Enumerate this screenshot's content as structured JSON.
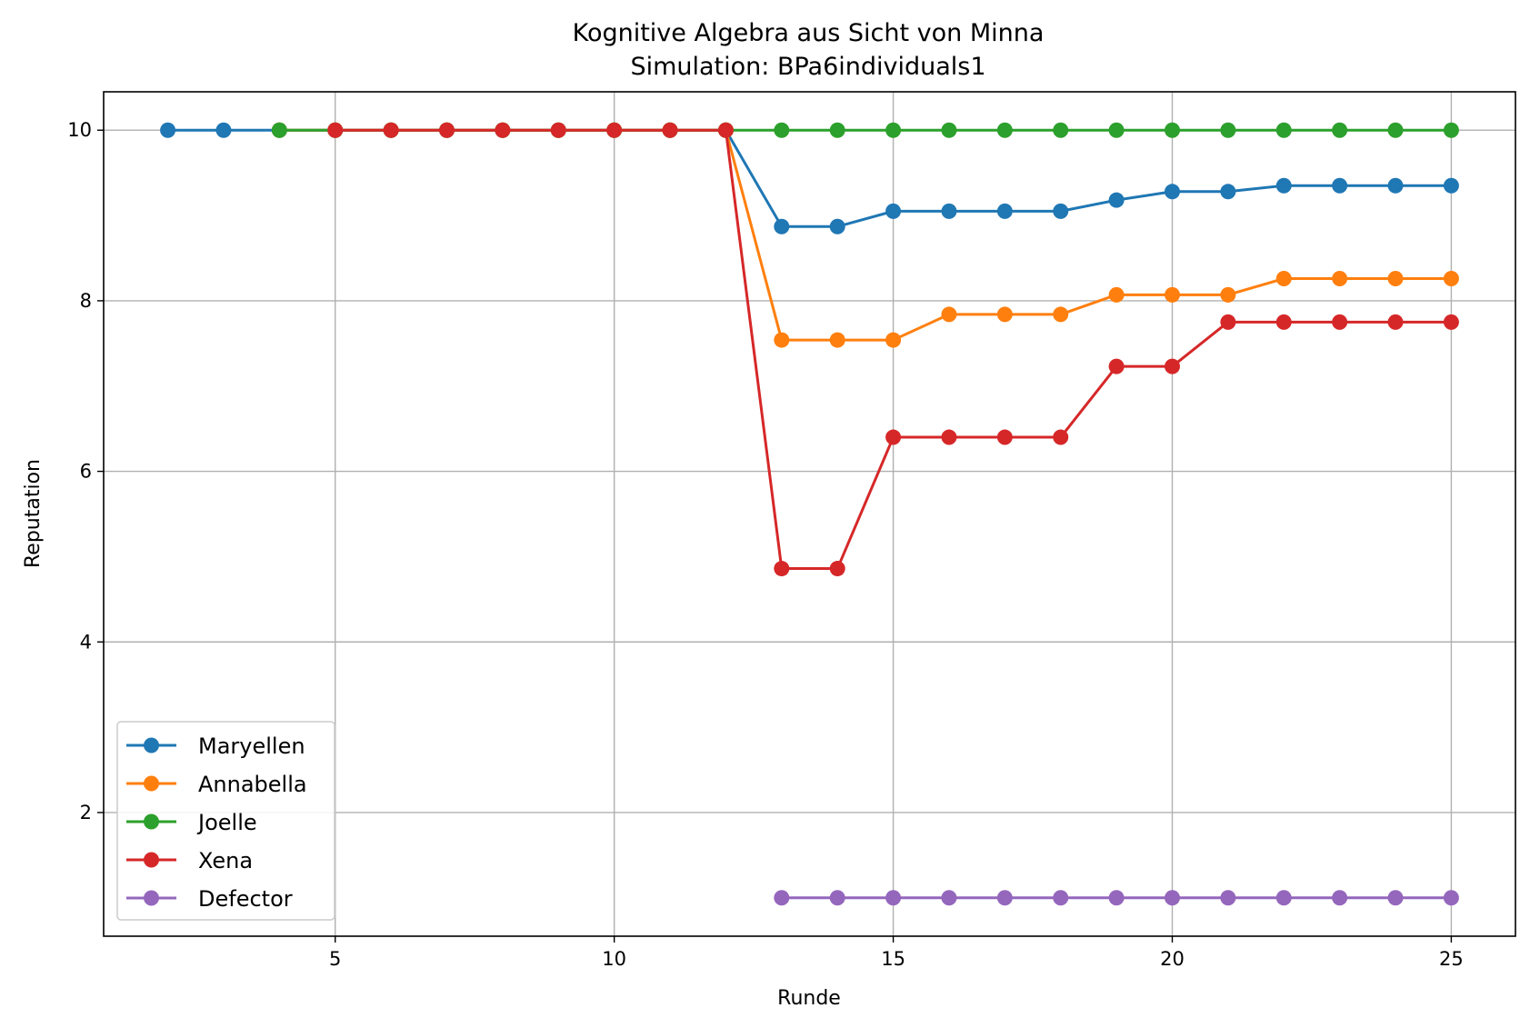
{
  "chart_data": {
    "type": "line",
    "title": "Kognitive Algebra aus Sicht von Minna",
    "subtitle": "Simulation: BPa6individuals1",
    "xlabel": "Runde",
    "ylabel": "Reputation",
    "xlim": [
      0.85,
      26.15
    ],
    "ylim": [
      0.55,
      10.45
    ],
    "xticks": [
      5,
      10,
      15,
      20,
      25
    ],
    "yticks": [
      2,
      4,
      6,
      8,
      10
    ],
    "grid": true,
    "legend_position": "lower-left",
    "series": [
      {
        "name": "Maryellen",
        "color": "#1f77b4",
        "x": [
          2,
          3,
          4,
          5,
          6,
          7,
          8,
          9,
          10,
          11,
          12,
          13,
          14,
          15,
          16,
          17,
          18,
          19,
          20,
          21,
          22,
          23,
          24,
          25
        ],
        "y": [
          10,
          10,
          10,
          10,
          10,
          10,
          10,
          10,
          10,
          10,
          10,
          8.87,
          8.87,
          9.05,
          9.05,
          9.05,
          9.05,
          9.18,
          9.28,
          9.28,
          9.35,
          9.35,
          9.35,
          9.35
        ]
      },
      {
        "name": "Annabella",
        "color": "#ff7f0e",
        "x": [
          4,
          5,
          6,
          7,
          8,
          9,
          10,
          11,
          12,
          13,
          14,
          15,
          16,
          17,
          18,
          19,
          20,
          21,
          22,
          23,
          24,
          25
        ],
        "y": [
          10,
          10,
          10,
          10,
          10,
          10,
          10,
          10,
          10,
          7.54,
          7.54,
          7.54,
          7.84,
          7.84,
          7.84,
          8.07,
          8.07,
          8.07,
          8.26,
          8.26,
          8.26,
          8.26
        ]
      },
      {
        "name": "Joelle",
        "color": "#2ca02c",
        "x": [
          4,
          5,
          6,
          7,
          8,
          9,
          10,
          11,
          12,
          13,
          14,
          15,
          16,
          17,
          18,
          19,
          20,
          21,
          22,
          23,
          24,
          25
        ],
        "y": [
          10,
          10,
          10,
          10,
          10,
          10,
          10,
          10,
          10,
          10,
          10,
          10,
          10,
          10,
          10,
          10,
          10,
          10,
          10,
          10,
          10,
          10
        ]
      },
      {
        "name": "Xena",
        "color": "#d62728",
        "x": [
          5,
          6,
          7,
          8,
          9,
          10,
          11,
          12,
          13,
          14,
          15,
          16,
          17,
          18,
          19,
          20,
          21,
          22,
          23,
          24,
          25
        ],
        "y": [
          10,
          10,
          10,
          10,
          10,
          10,
          10,
          10,
          4.86,
          4.86,
          6.4,
          6.4,
          6.4,
          6.4,
          7.23,
          7.23,
          7.75,
          7.75,
          7.75,
          7.75,
          7.75
        ]
      },
      {
        "name": "Defector",
        "color": "#9467bd",
        "x": [
          13,
          14,
          15,
          16,
          17,
          18,
          19,
          20,
          21,
          22,
          23,
          24,
          25
        ],
        "y": [
          1,
          1,
          1,
          1,
          1,
          1,
          1,
          1,
          1,
          1,
          1,
          1,
          1
        ]
      }
    ]
  }
}
